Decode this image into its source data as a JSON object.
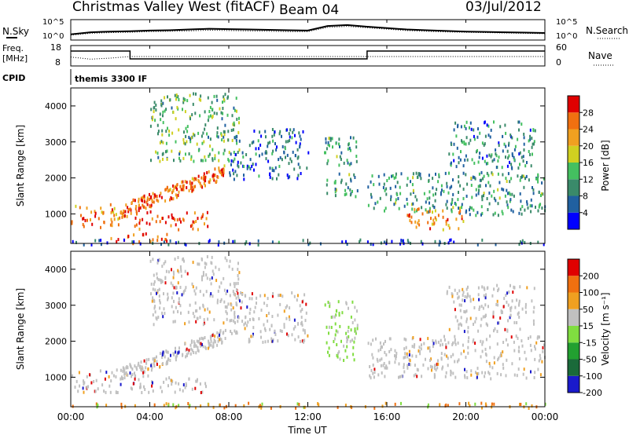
{
  "header": {
    "title": "Christmas Valley West (fitACF)",
    "beam": "Beam 04",
    "date": "03/Jul/2012"
  },
  "left_labels": {
    "nsky": "N.Sky",
    "freq": "Freq.",
    "freq_unit": "[MHz]",
    "cpid": "CPID"
  },
  "right_labels": {
    "nsearch": "N.Search",
    "nave": "Nave"
  },
  "cpid_value": "themis 3300 IF",
  "colors": {
    "power_scale": [
      "#0000ff",
      "#2060a0",
      "#3a8a6a",
      "#44c060",
      "#d0d020",
      "#f0a020",
      "#f07010",
      "#e00000"
    ],
    "velocity_scale": [
      "#1a1acc",
      "#1a6a3a",
      "#22a030",
      "#80dd40",
      "#c0c0c0",
      "#f0a020",
      "#f07010",
      "#e00000"
    ]
  },
  "chart_data": [
    {
      "type": "line",
      "name": "noise-panel",
      "yticks": [
        "10^5",
        "10^0"
      ],
      "right_yticks": [
        "10^5",
        "10^0"
      ],
      "series": [
        {
          "name": "N.Sky",
          "x": [
            0,
            1,
            2,
            3,
            4,
            5,
            6,
            7,
            8,
            9,
            10,
            11,
            12,
            13,
            14,
            15,
            16,
            17,
            18,
            19,
            20,
            21,
            22,
            23,
            24
          ],
          "values": [
            1.2,
            1.8,
            2.0,
            2.1,
            2.3,
            2.4,
            2.6,
            2.8,
            2.7,
            2.6,
            2.5,
            2.4,
            2.3,
            3.6,
            3.9,
            3.4,
            3.0,
            2.6,
            2.4,
            2.2,
            2.0,
            1.9,
            1.8,
            1.7,
            1.6
          ]
        },
        {
          "name": "N.Search",
          "x": [
            0,
            1,
            2,
            3,
            4,
            5,
            6,
            7,
            8,
            9,
            10,
            11,
            12,
            13,
            14,
            15,
            16,
            17,
            18,
            19,
            20,
            21,
            22,
            23,
            24
          ],
          "values": [
            1.0,
            1.5,
            1.7,
            1.8,
            2.0,
            2.1,
            2.2,
            2.4,
            2.3,
            2.2,
            2.1,
            2.0,
            2.0,
            3.2,
            3.5,
            3.1,
            2.7,
            2.3,
            2.1,
            1.9,
            1.8,
            1.7,
            1.6,
            1.5,
            1.4
          ]
        }
      ]
    },
    {
      "type": "line",
      "name": "freq-nave-panel",
      "yticks": [
        "18",
        "8"
      ],
      "right_yticks": [
        "60",
        "0"
      ],
      "series": [
        {
          "name": "Freq",
          "x": [
            0,
            3,
            3,
            15,
            15,
            24
          ],
          "values": [
            16.5,
            16.5,
            11.5,
            11.5,
            16.5,
            16.5
          ]
        },
        {
          "name": "Nave",
          "x": [
            0,
            1,
            2,
            3,
            4,
            8,
            12,
            15,
            16,
            20,
            24
          ],
          "values": [
            28,
            20,
            24,
            30,
            30,
            30,
            30,
            30,
            30,
            30,
            30
          ]
        }
      ]
    },
    {
      "type": "heatmap",
      "name": "power-panel",
      "x_range": [
        0,
        24
      ],
      "xticks": [
        "00:00",
        "04:00",
        "08:00",
        "12:00",
        "16:00",
        "20:00",
        "00:00"
      ],
      "y_range": [
        180,
        4500
      ],
      "yticks": [
        1000,
        2000,
        3000,
        4000
      ],
      "ylabel": "Slant Range [km]",
      "colorbar": {
        "label": "Power [dB]",
        "ticks": [
          4,
          8,
          12,
          16,
          20,
          24,
          28
        ]
      },
      "scatter_bands": [
        {
          "t0": 0.0,
          "t1": 2.5,
          "r0": 600,
          "r1": 1300,
          "level": 0.8
        },
        {
          "t0": 2.5,
          "t1": 7.8,
          "r0": 900,
          "r1": 2300,
          "level": 0.85,
          "slope": true
        },
        {
          "t0": 3.0,
          "t1": 7.0,
          "r0": 600,
          "r1": 1100,
          "level": 0.9
        },
        {
          "t0": 2.0,
          "t1": 5.0,
          "r0": 200,
          "r1": 500,
          "level": 0.95
        },
        {
          "t0": 4.0,
          "t1": 8.5,
          "r0": 2500,
          "r1": 4400,
          "level": 0.4
        },
        {
          "t0": 8.0,
          "t1": 12.0,
          "r0": 2000,
          "r1": 3400,
          "level": 0.2
        },
        {
          "t0": 12.8,
          "t1": 14.5,
          "r0": 1500,
          "r1": 3200,
          "level": 0.3
        },
        {
          "t0": 15.0,
          "t1": 24.0,
          "r0": 1000,
          "r1": 2200,
          "level": 0.3
        },
        {
          "t0": 17.0,
          "t1": 20.0,
          "r0": 600,
          "r1": 1200,
          "level": 0.75
        },
        {
          "t0": 19.0,
          "t1": 23.5,
          "r0": 2300,
          "r1": 3600,
          "level": 0.25
        },
        {
          "t0": 0.0,
          "t1": 24.0,
          "r0": 180,
          "r1": 320,
          "level": 0.15
        }
      ]
    },
    {
      "type": "heatmap",
      "name": "velocity-panel",
      "x_range": [
        0,
        24
      ],
      "xticks": [
        "00:00",
        "04:00",
        "08:00",
        "12:00",
        "16:00",
        "20:00",
        "00:00"
      ],
      "xlabel": "Time UT",
      "y_range": [
        180,
        4500
      ],
      "yticks": [
        1000,
        2000,
        3000,
        4000
      ],
      "ylabel": "Slant Range [km]",
      "colorbar": {
        "label": "Velocity [m s⁻¹]",
        "ticks": [
          200,
          100,
          50,
          15,
          -15,
          -50,
          -100,
          -200
        ]
      },
      "scatter_bands": [
        {
          "t0": 0.0,
          "t1": 2.5,
          "r0": 600,
          "r1": 1300,
          "level": 0.5
        },
        {
          "t0": 2.5,
          "t1": 7.8,
          "r0": 900,
          "r1": 2300,
          "level": 0.5,
          "slope": true
        },
        {
          "t0": 3.0,
          "t1": 7.0,
          "r0": 600,
          "r1": 1100,
          "level": 0.5
        },
        {
          "t0": 4.0,
          "t1": 8.5,
          "r0": 2500,
          "r1": 4400,
          "level": 0.5
        },
        {
          "t0": 8.0,
          "t1": 12.0,
          "r0": 2000,
          "r1": 3400,
          "level": 0.5
        },
        {
          "t0": 12.8,
          "t1": 14.5,
          "r0": 1500,
          "r1": 3200,
          "level": 0.25
        },
        {
          "t0": 15.0,
          "t1": 24.0,
          "r0": 1000,
          "r1": 2200,
          "level": 0.5
        },
        {
          "t0": 19.0,
          "t1": 23.5,
          "r0": 2300,
          "r1": 3600,
          "level": 0.5
        },
        {
          "t0": 0.0,
          "t1": 24.0,
          "r0": 180,
          "r1": 320,
          "level": 0.7
        }
      ]
    }
  ]
}
